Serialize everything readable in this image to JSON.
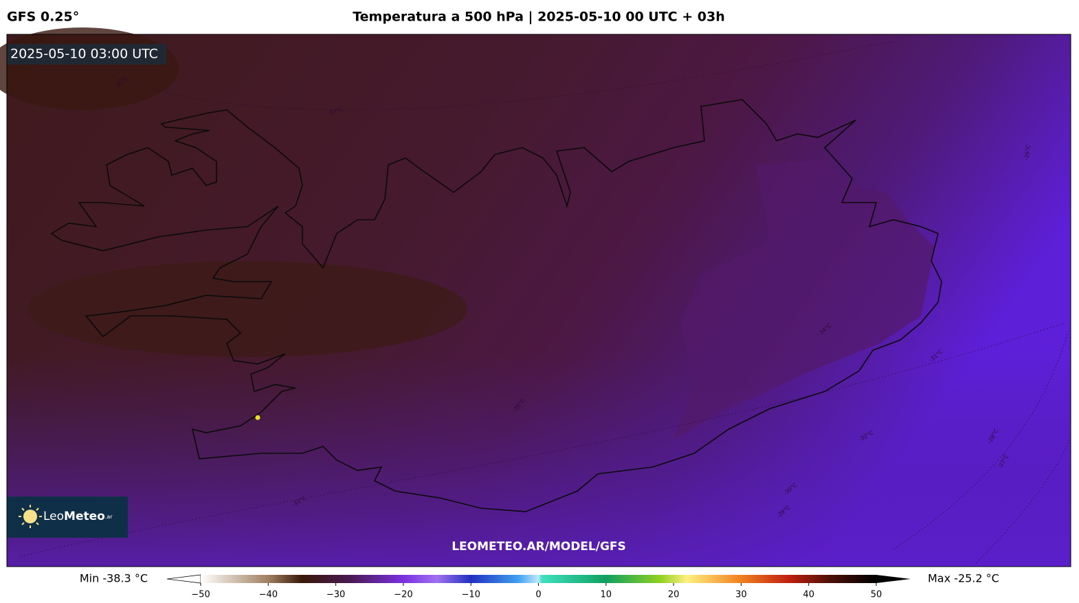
{
  "header": {
    "model": "GFS 0.25°",
    "title": "Temperatura a 500 hPa | 2025-05-10 00 UTC + 03h"
  },
  "map": {
    "valid_time": "2025-05-10 03:00 UTC",
    "watermark": "LEOMETEO.AR/MODEL/GFS",
    "logo": {
      "name_light": "Leo",
      "name_bold": "Meteo",
      "suffix": ".ar"
    },
    "contour_labels": [
      "-37°C",
      "-36°C",
      "-35°C",
      "-34°C",
      "-33°C",
      "-32°C",
      "-31°C",
      "-30°C",
      "-29°C",
      "-28°C",
      "-27°C",
      "-26°C"
    ]
  },
  "colorbar": {
    "min_label": "Min -38.3 °C",
    "max_label": "Max -25.2 °C",
    "range": [
      -50,
      50
    ],
    "ticks": [
      {
        "value": -50,
        "label": "−50"
      },
      {
        "value": -40,
        "label": "−40"
      },
      {
        "value": -30,
        "label": "−30"
      },
      {
        "value": -20,
        "label": "−20"
      },
      {
        "value": -10,
        "label": "−10"
      },
      0,
      10,
      20,
      30,
      40,
      50
    ]
  }
}
